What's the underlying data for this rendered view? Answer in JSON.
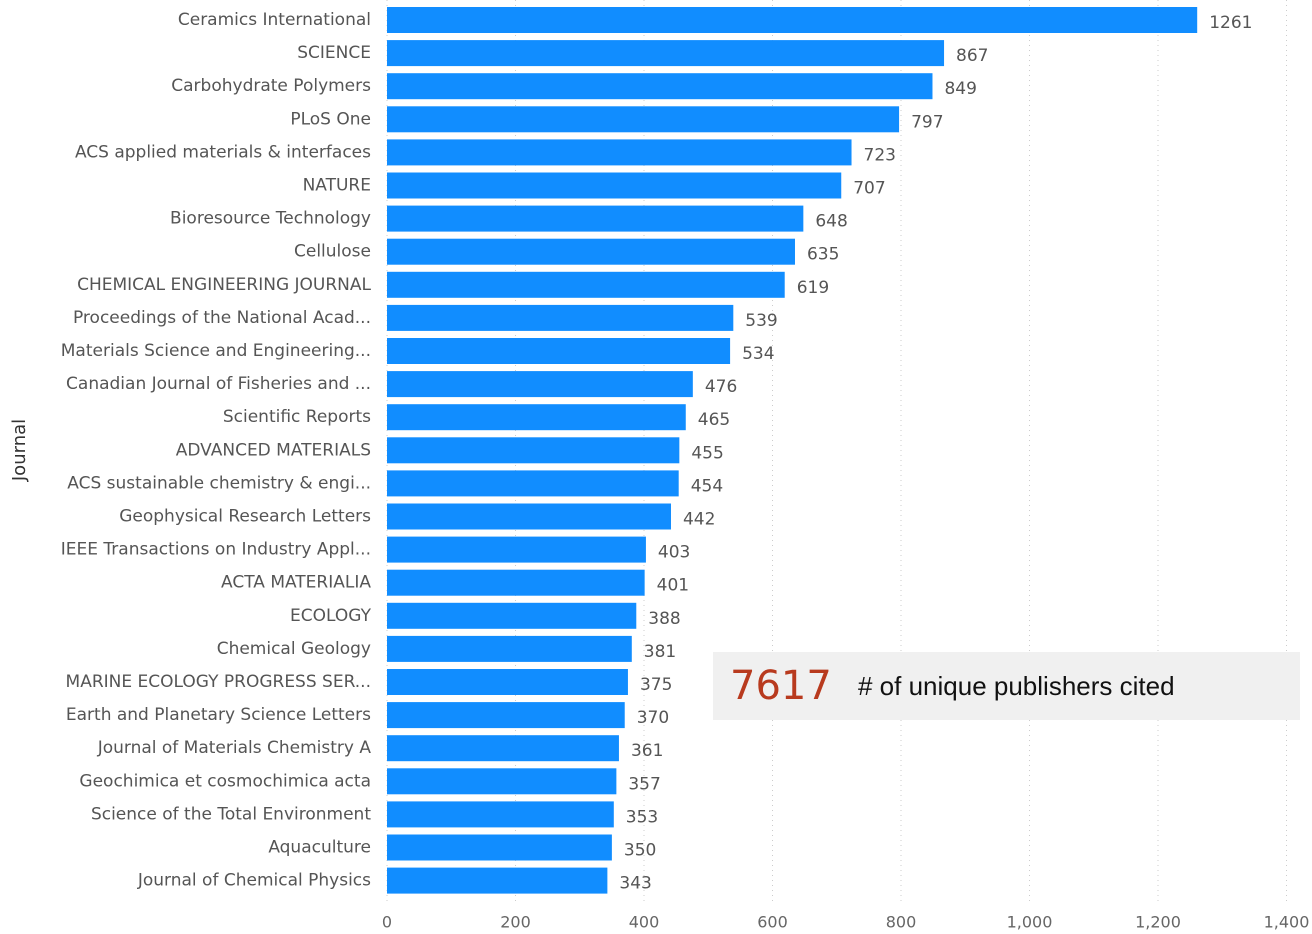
{
  "chart_data": {
    "type": "bar",
    "orientation": "horizontal",
    "y_label": "Journal",
    "categories": [
      "Ceramics International",
      "SCIENCE",
      "Carbohydrate Polymers",
      "PLoS One",
      "ACS applied materials & interfaces",
      "NATURE",
      "Bioresource Technology",
      "Cellulose",
      "CHEMICAL ENGINEERING JOURNAL",
      "Proceedings of the National Acad...",
      "Materials Science and Engineering...",
      "Canadian Journal of Fisheries and ...",
      "Scientific Reports",
      "ADVANCED MATERIALS",
      "ACS sustainable chemistry & engi...",
      "Geophysical Research Letters",
      "IEEE Transactions on Industry Appl...",
      "ACTA MATERIALIA",
      "ECOLOGY",
      "Chemical Geology",
      "MARINE ECOLOGY PROGRESS SER...",
      "Earth and Planetary Science Letters",
      "Journal of Materials Chemistry A",
      "Geochimica et cosmochimica acta",
      "Science of the Total Environment",
      "Aquaculture",
      "Journal of Chemical Physics"
    ],
    "values": [
      1261,
      867,
      849,
      797,
      723,
      707,
      648,
      635,
      619,
      539,
      534,
      476,
      465,
      455,
      454,
      442,
      403,
      401,
      388,
      381,
      375,
      370,
      361,
      357,
      353,
      350,
      343
    ],
    "color": "#118dff",
    "xlim": [
      0,
      1400
    ],
    "xticks": [
      0,
      200,
      400,
      600,
      800,
      {
        "value": 1000,
        "label": "1,000"
      },
      {
        "value": 1200,
        "label": "1,200"
      },
      {
        "value": 1400,
        "label": "1,400"
      }
    ],
    "grid": true
  },
  "card": {
    "value": 7617,
    "label": "# of unique publishers cited"
  }
}
